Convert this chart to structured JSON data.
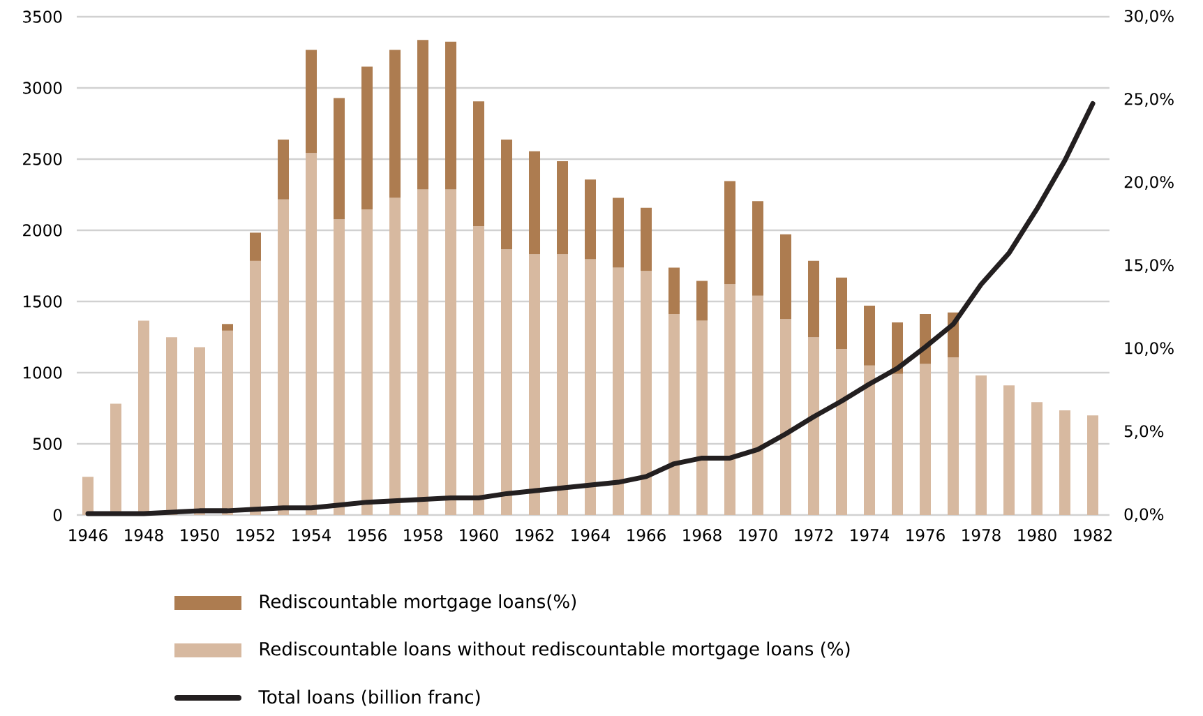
{
  "chart_data": {
    "type": "bar",
    "stacked": true,
    "x": [
      1946,
      1947,
      1948,
      1949,
      1950,
      1951,
      1952,
      1953,
      1954,
      1955,
      1956,
      1957,
      1958,
      1959,
      1960,
      1961,
      1962,
      1963,
      1964,
      1965,
      1966,
      1967,
      1968,
      1969,
      1970,
      1971,
      1972,
      1973,
      1974,
      1975,
      1976,
      1977,
      1978,
      1979,
      1980,
      1981,
      1982
    ],
    "series": [
      {
        "name": "Rediscountable loans without rediscountable mortgage loans (%)",
        "axis": "y2",
        "color": "#d7b9a0",
        "values": [
          2.3,
          6.7,
          11.7,
          10.7,
          10.1,
          11.1,
          15.3,
          19.0,
          21.8,
          17.8,
          18.4,
          19.1,
          19.6,
          19.6,
          17.4,
          16.0,
          15.7,
          15.7,
          15.4,
          14.9,
          14.7,
          12.1,
          11.7,
          13.9,
          13.2,
          11.8,
          10.7,
          10.0,
          9.0,
          8.5,
          9.1,
          9.5,
          8.4,
          7.8,
          6.8,
          6.3,
          6.0
        ]
      },
      {
        "name": "Rediscountable mortgage loans(%)",
        "axis": "y2",
        "color": "#ad7c50",
        "values": [
          null,
          null,
          null,
          null,
          null,
          0.4,
          1.7,
          3.6,
          6.2,
          7.3,
          8.6,
          8.9,
          9.0,
          8.9,
          7.5,
          6.6,
          6.2,
          5.6,
          4.8,
          4.2,
          3.8,
          2.8,
          2.4,
          6.2,
          5.7,
          5.1,
          4.6,
          4.3,
          3.6,
          3.1,
          3.0,
          2.7,
          null,
          null,
          null,
          null,
          null
        ]
      },
      {
        "name": "Total loans (billion franc)",
        "type": "line",
        "color": "#231f20",
        "values": [
          10,
          10,
          10,
          20,
          30,
          30,
          40,
          50,
          50,
          70,
          90,
          100,
          110,
          120,
          120,
          150,
          170,
          190,
          210,
          230,
          270,
          360,
          400,
          400,
          460,
          570,
          690,
          800,
          920,
          1030,
          1180,
          1340,
          1620,
          1840,
          2150,
          2490,
          2890
        ]
      }
    ],
    "xlim": [
      1945.6,
      1982.6
    ],
    "xticks": [
      1946,
      1948,
      1950,
      1952,
      1954,
      1956,
      1958,
      1960,
      1962,
      1964,
      1966,
      1968,
      1970,
      1972,
      1974,
      1976,
      1978,
      1980,
      1982
    ],
    "ylim": [
      0,
      3500
    ],
    "yticks": [
      0,
      500,
      1000,
      1500,
      2000,
      2500,
      3000,
      3500
    ],
    "y2lim": [
      0,
      30
    ],
    "y2ticks": [
      {
        "value": 0,
        "label": "0,0%"
      },
      {
        "value": 5,
        "label": "5,0%"
      },
      {
        "value": 10,
        "label": "10,0%"
      },
      {
        "value": 15,
        "label": "15,0%"
      },
      {
        "value": 20,
        "label": "20,0%"
      },
      {
        "value": 25,
        "label": "25,0%"
      },
      {
        "value": 30,
        "label": "30,0%"
      }
    ],
    "grid": "y",
    "legend": "bottom"
  }
}
